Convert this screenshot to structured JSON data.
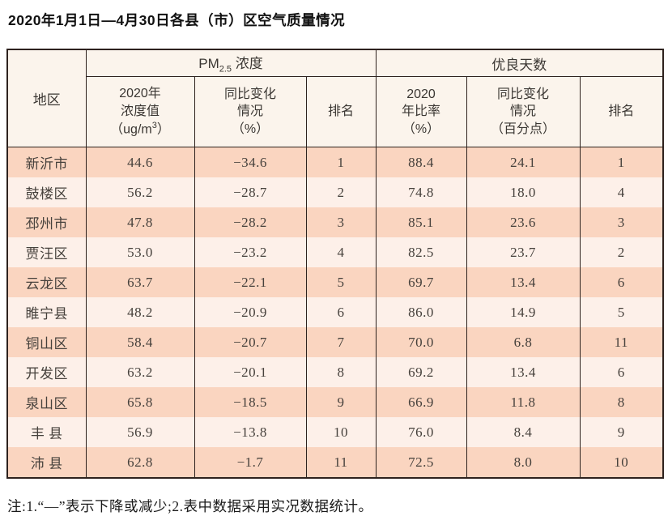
{
  "title": "2020年1月1日—4月30日各县（市）区空气质量情况",
  "header": {
    "region": "地区",
    "pm_group": {
      "prefix": "PM",
      "sub": "2.5",
      "suffix": " 浓度"
    },
    "good_days_group": "优良天数",
    "pm_cols": {
      "value": {
        "line1": "2020年",
        "line2": "浓度值",
        "unit_prefix": "（ug/m",
        "unit_sup": "3",
        "unit_suffix": "）"
      },
      "yoy": {
        "line1": "同比变化",
        "line2": "情况",
        "line3": "（%）"
      },
      "rank": "排名"
    },
    "good_cols": {
      "ratio": {
        "line1": "2020",
        "line2": "年比率",
        "line3": "（%）"
      },
      "yoy": {
        "line1": "同比变化",
        "line2": "情况",
        "line3": "（百分点）"
      },
      "rank": "排名"
    }
  },
  "chart_data": {
    "type": "table",
    "title": "2020年1月1日—4月30日各县（市）区空气质量情况",
    "columns": [
      "地区",
      "PM2.5浓度 2020年浓度值（ug/m3）",
      "PM2.5浓度 同比变化情况（%）",
      "PM2.5浓度 排名",
      "优良天数 2020年比率（%）",
      "优良天数 同比变化情况（百分点）",
      "优良天数 排名"
    ],
    "rows": [
      [
        "新沂市",
        "44.6",
        "−34.6",
        "1",
        "88.4",
        "24.1",
        "1"
      ],
      [
        "鼓楼区",
        "56.2",
        "−28.7",
        "2",
        "74.8",
        "18.0",
        "4"
      ],
      [
        "邳州市",
        "47.8",
        "−28.2",
        "3",
        "85.1",
        "23.6",
        "3"
      ],
      [
        "贾汪区",
        "53.0",
        "−23.2",
        "4",
        "82.5",
        "23.7",
        "2"
      ],
      [
        "云龙区",
        "63.7",
        "−22.1",
        "5",
        "69.7",
        "13.4",
        "6"
      ],
      [
        "睢宁县",
        "48.2",
        "−20.9",
        "6",
        "86.0",
        "14.9",
        "5"
      ],
      [
        "铜山区",
        "58.4",
        "−20.7",
        "7",
        "70.0",
        "6.8",
        "11"
      ],
      [
        "开发区",
        "63.2",
        "−20.1",
        "8",
        "69.2",
        "13.4",
        "6"
      ],
      [
        "泉山区",
        "65.8",
        "−18.5",
        "9",
        "66.9",
        "11.8",
        "8"
      ],
      [
        "丰 县",
        "56.9",
        "−13.8",
        "10",
        "76.0",
        "8.4",
        "9"
      ],
      [
        "沛 县",
        "62.8",
        "−1.7",
        "11",
        "72.5",
        "8.0",
        "10"
      ]
    ]
  },
  "footnote": "注:1.“—”表示下降或减少;2.表中数据采用实况数据统计。",
  "colors": {
    "border": "#2e221e",
    "header_bg": "#fbf4ec",
    "row_odd": "#fad5c0",
    "row_even": "#fdf0e9"
  }
}
